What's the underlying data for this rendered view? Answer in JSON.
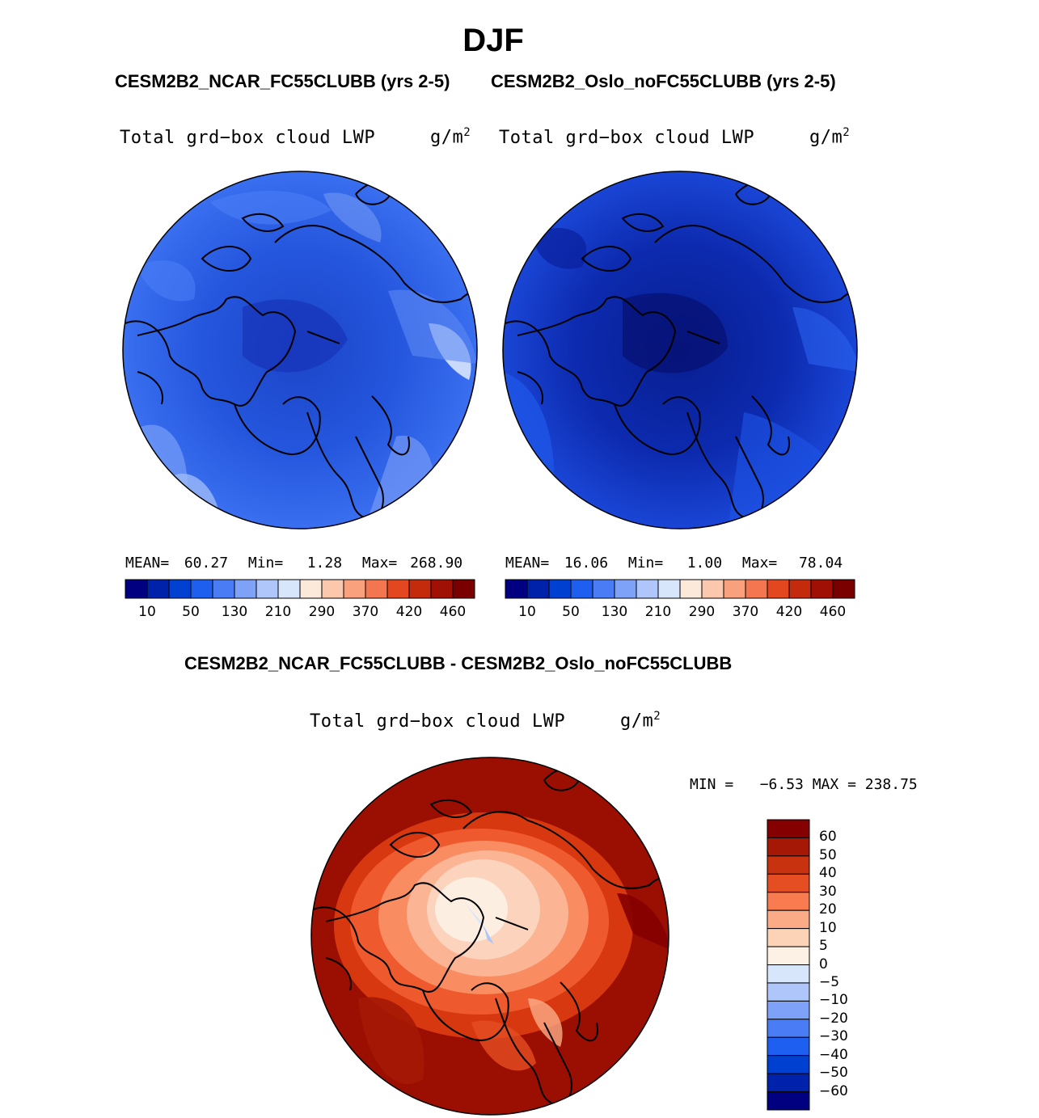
{
  "title": "DJF",
  "top_subtitle_left": "CESM2B2_NCAR_FC55CLUBB (yrs 2-5)",
  "top_subtitle_right": "CESM2B2_Oslo_noFC55CLUBB (yrs 2-5)",
  "diff_subtitle": "CESM2B2_NCAR_FC55CLUBB - CESM2B2_Oslo_noFC55CLUBB",
  "panels": {
    "left": {
      "variable": "Total grd−box cloud LWP",
      "units_base": "g/m",
      "units_exp": "2",
      "mean_label": "MEAN=",
      "mean": "60.27",
      "min_label": "Min=",
      "min": "1.28",
      "max_label": "Max=",
      "max": "268.90"
    },
    "right": {
      "variable": "Total grd−box cloud LWP",
      "units_base": "g/m",
      "units_exp": "2",
      "mean_label": "MEAN=",
      "mean": "16.06",
      "min_label": "Min=",
      "min": "1.00",
      "max_label": "Max=",
      "max": "78.04"
    },
    "diff": {
      "variable": "Total grd−box cloud LWP",
      "units_base": "g/m",
      "units_exp": "2",
      "minmax_text": "MIN =   −6.53 MAX = 238.75"
    }
  },
  "horizontal_colorbar": {
    "colors": [
      "#000080",
      "#0022aa",
      "#0040d0",
      "#1f5ff0",
      "#4a7df5",
      "#7ea2f7",
      "#afc6fa",
      "#d8e6fc",
      "#fde9da",
      "#fcc8ad",
      "#f9a07c",
      "#f47650",
      "#e3471f",
      "#c42a0c",
      "#a01005",
      "#7a0000"
    ],
    "tick_labels": [
      "10",
      "50",
      "130",
      "210",
      "290",
      "370",
      "420",
      "460"
    ]
  },
  "vertical_colorbar": {
    "colors_top_to_bottom": [
      "#850000",
      "#a51805",
      "#c8320f",
      "#e54d22",
      "#f87c4f",
      "#fbab86",
      "#fdd3b8",
      "#fdf0e4",
      "#d8e6fc",
      "#afc6fa",
      "#7ea2f7",
      "#4a7df5",
      "#1f5ff0",
      "#0040d0",
      "#0022aa",
      "#000080"
    ],
    "tick_labels_top_to_bottom": [
      "60",
      "50",
      "40",
      "30",
      "20",
      "10",
      "5",
      "0",
      "−5",
      "−10",
      "−20",
      "−30",
      "−40",
      "−50",
      "−60"
    ]
  },
  "colors": {
    "left_map_base": "#2a5fe8",
    "right_map_base": "#1438c8",
    "diff_map_base": "#9b0e02"
  }
}
